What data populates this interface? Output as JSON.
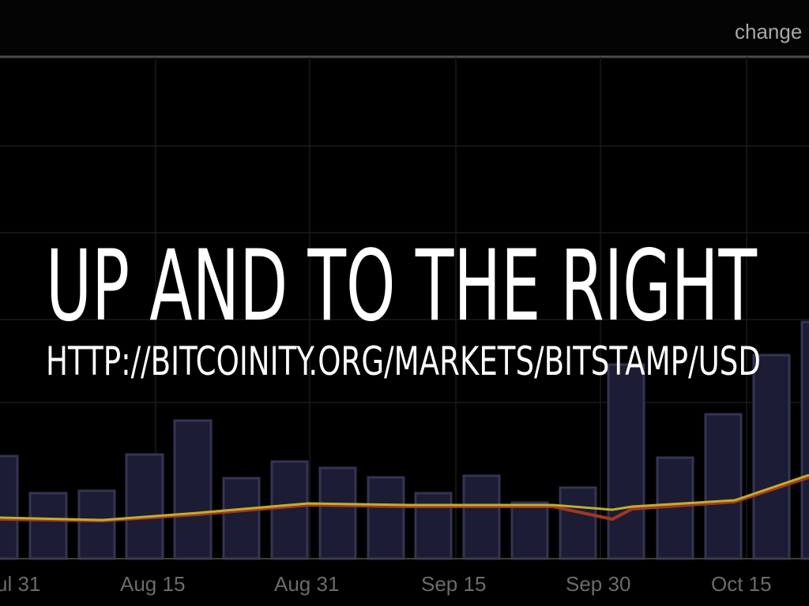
{
  "slide": {
    "title": "UP AND TO THE RIGHT",
    "subtitle": "HTTP://BITCOINITY.ORG/MARKETS/BITSTAMP/USD"
  },
  "background": {
    "button": "change",
    "x_labels": [
      "ul 31",
      "Aug 15",
      "Aug 31",
      "Sep 15",
      "Sep 30",
      "Oct 15"
    ]
  }
}
